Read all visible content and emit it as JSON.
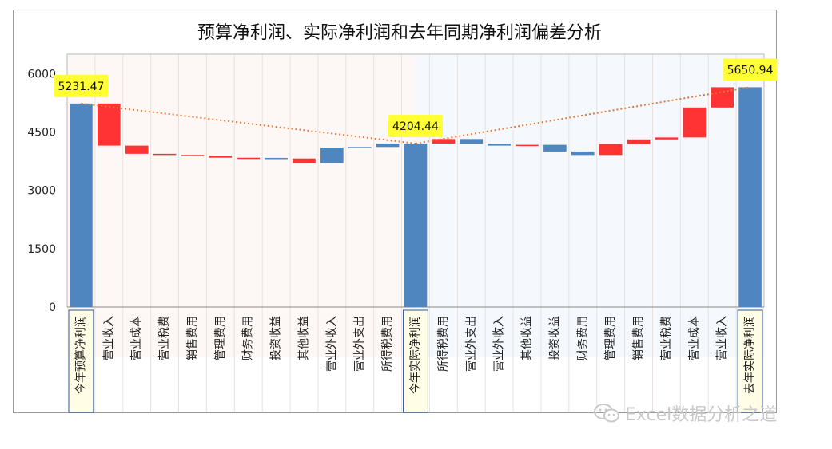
{
  "chart_data": {
    "type": "bar",
    "subtype": "waterfall",
    "title": "预算净利润、实际净利润和去年同期净利润偏差分析",
    "ylim": [
      0,
      6500
    ],
    "yticks": [
      0,
      1500,
      3000,
      4500,
      6000
    ],
    "grid": false,
    "legend": "none",
    "categories": [
      "今年预算净利润",
      "营业收入",
      "营业成本",
      "营业税费",
      "销售费用",
      "管理费用",
      "财务费用",
      "投资收益",
      "其他收益",
      "营业外收入",
      "营业外支出",
      "所得税费用",
      "今年实际净利润",
      "所得税费用",
      "营业外支出",
      "营业外收入",
      "其他收益",
      "投资收益",
      "财务费用",
      "管理费用",
      "销售费用",
      "营业税费",
      "营业成本",
      "营业收入",
      "去年实际净利润"
    ],
    "bars": [
      {
        "kind": "total",
        "low": 0,
        "high": 5231.47
      },
      {
        "kind": "decrease",
        "low": 4150,
        "high": 5231.47
      },
      {
        "kind": "decrease",
        "low": 3940,
        "high": 4150
      },
      {
        "kind": "decrease",
        "low": 3910,
        "high": 3940
      },
      {
        "kind": "decrease",
        "low": 3895,
        "high": 3910
      },
      {
        "kind": "decrease",
        "low": 3840,
        "high": 3895
      },
      {
        "kind": "decrease",
        "low": 3820,
        "high": 3840
      },
      {
        "kind": "increase",
        "low": 3820,
        "high": 3835
      },
      {
        "kind": "decrease",
        "low": 3700,
        "high": 3820
      },
      {
        "kind": "increase",
        "low": 3700,
        "high": 4100
      },
      {
        "kind": "increase",
        "low": 4100,
        "high": 4115
      },
      {
        "kind": "increase",
        "low": 4115,
        "high": 4204.44
      },
      {
        "kind": "total",
        "low": 0,
        "high": 4204.44
      },
      {
        "kind": "decrease",
        "low": 4204.44,
        "high": 4320
      },
      {
        "kind": "increase",
        "low": 4200,
        "high": 4320
      },
      {
        "kind": "increase",
        "low": 4150,
        "high": 4200
      },
      {
        "kind": "decrease",
        "low": 4150,
        "high": 4170
      },
      {
        "kind": "increase",
        "low": 4000,
        "high": 4170
      },
      {
        "kind": "increase",
        "low": 3910,
        "high": 4000
      },
      {
        "kind": "decrease",
        "low": 3910,
        "high": 4190
      },
      {
        "kind": "decrease",
        "low": 4190,
        "high": 4310
      },
      {
        "kind": "decrease",
        "low": 4310,
        "high": 4360
      },
      {
        "kind": "decrease",
        "low": 4360,
        "high": 5130
      },
      {
        "kind": "decrease",
        "low": 5130,
        "high": 5650.94
      },
      {
        "kind": "total",
        "low": 0,
        "high": 5650.94
      }
    ],
    "data_labels": [
      {
        "index": 0,
        "text": "5231.47"
      },
      {
        "index": 12,
        "text": "4204.44"
      },
      {
        "index": 24,
        "text": "5650.94"
      }
    ],
    "colors": {
      "total": "#4f86bf",
      "increase": "#4f86bf",
      "decrease": "#ff3333",
      "trend": "#e07a3a",
      "callout": "#ffff33",
      "left_band": "#fdf8f5",
      "right_band": "#f5f8fc",
      "total_label_bg": "#fffde6",
      "total_label_border": "#2f5597"
    }
  },
  "watermark": {
    "text": "Excel数据分析之道",
    "icon": "wechat-icon"
  }
}
